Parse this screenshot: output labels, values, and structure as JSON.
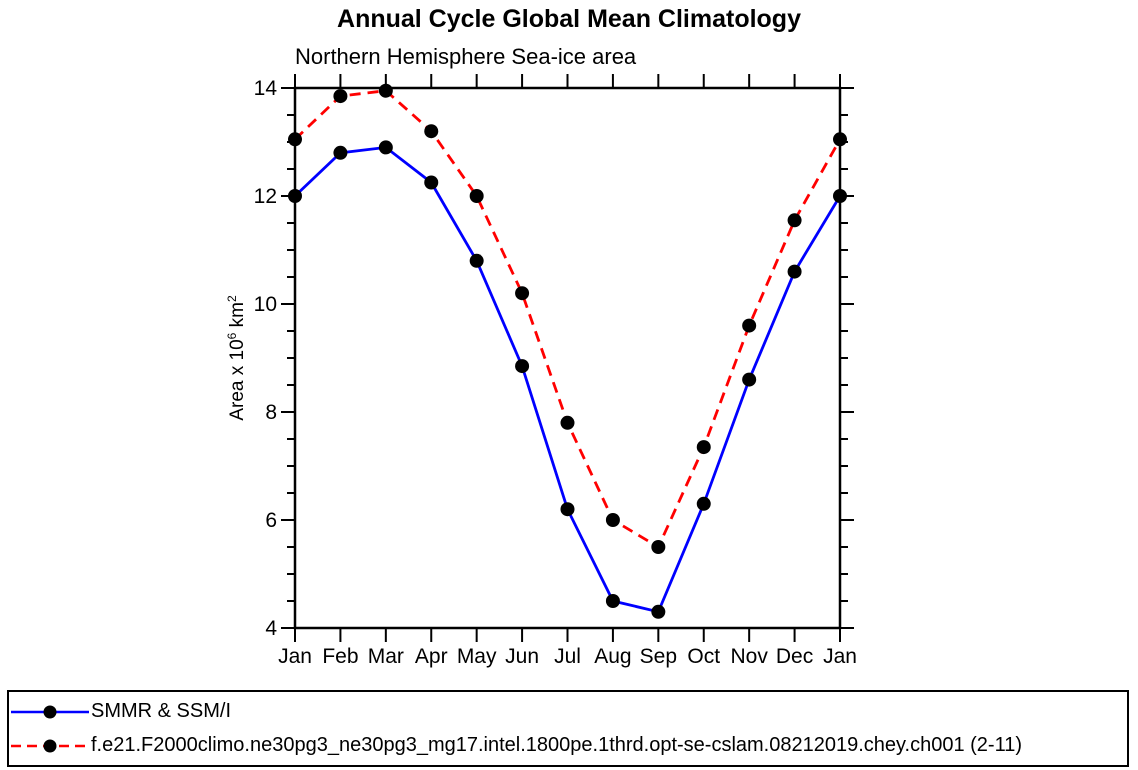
{
  "chart_data": {
    "type": "line",
    "title": "Annual Cycle Global Mean Climatology",
    "subtitle": "Northern Hemisphere Sea-ice area",
    "xlabel": "",
    "ylabel": "Area x 10^6 km^2",
    "ylabel_parts": {
      "base": "Area x 10",
      "exp": "6",
      "unit": " km",
      "unit_exp": "2"
    },
    "x_categories": [
      "Jan",
      "Feb",
      "Mar",
      "Apr",
      "May",
      "Jun",
      "Jul",
      "Aug",
      "Sep",
      "Oct",
      "Nov",
      "Dec",
      "Jan"
    ],
    "ylim": [
      4,
      14
    ],
    "y_major_ticks": [
      4,
      6,
      8,
      10,
      12,
      14
    ],
    "y_minor_step": 0.5,
    "grid": false,
    "legend_position": "framed box, bottom left, outside plot",
    "axis_color": "#000000",
    "marker": "filled-circle",
    "marker_color": "#000000",
    "series": [
      {
        "name": "SMMR & SSM/I",
        "color": "#0000ff",
        "line_style": "solid",
        "values": [
          12.0,
          12.8,
          12.9,
          12.25,
          10.8,
          8.85,
          6.2,
          4.5,
          4.3,
          6.3,
          8.6,
          10.6,
          12.0
        ]
      },
      {
        "name": "f.e21.F2000climo.ne30pg3_ne30pg3_mg17.intel.1800pe.1thrd.opt-se-cslam.08212019.chey.ch001 (2-11)",
        "color": "#ff0000",
        "line_style": "dashed",
        "values": [
          13.05,
          13.85,
          13.95,
          13.2,
          12.0,
          10.2,
          7.8,
          6.0,
          5.5,
          7.35,
          9.6,
          11.55,
          13.05
        ]
      }
    ]
  }
}
